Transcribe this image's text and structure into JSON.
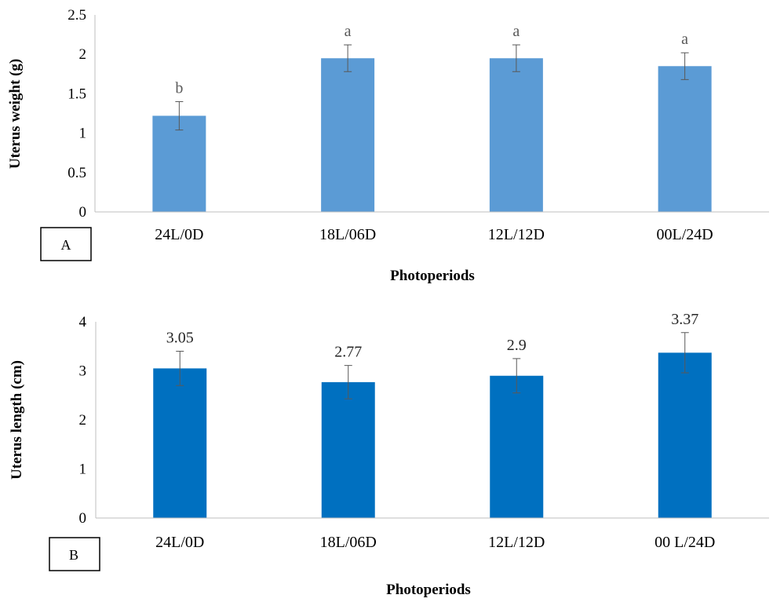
{
  "chart_data": [
    {
      "type": "bar",
      "panel_label": "A",
      "categories": [
        "24L/0D",
        "18L/06D",
        "12L/12D",
        "00L/24D"
      ],
      "values": [
        1.22,
        1.95,
        1.95,
        1.85
      ],
      "error": [
        0.18,
        0.17,
        0.17,
        0.17
      ],
      "annotations": [
        "b",
        "a",
        "a",
        "a"
      ],
      "yticks": [
        "0",
        "0.5",
        "1",
        "1.5",
        "2",
        "2.5"
      ],
      "ylim": [
        0,
        2.5
      ],
      "xlabel": "Photoperiods",
      "ylabel": "Uterus weight (g)",
      "bar_color": "#5b9bd5",
      "annotation_color": "#595959",
      "grid": false
    },
    {
      "type": "bar",
      "panel_label": "B",
      "categories": [
        "24L/0D",
        "18L/06D",
        "12L/12D",
        "00 L/24D"
      ],
      "values": [
        3.05,
        2.77,
        2.9,
        3.37
      ],
      "error": [
        0.35,
        0.34,
        0.35,
        0.41
      ],
      "annotations": [
        "3.05",
        "2.77",
        "2.9",
        "3.37"
      ],
      "yticks": [
        "0",
        "1",
        "2",
        "3",
        "4"
      ],
      "ylim": [
        0,
        4
      ],
      "xlabel": "Photoperiods",
      "ylabel": "Uterus length (cm)",
      "bar_color": "#0070c0",
      "annotation_color": "#262626",
      "grid": false
    }
  ]
}
